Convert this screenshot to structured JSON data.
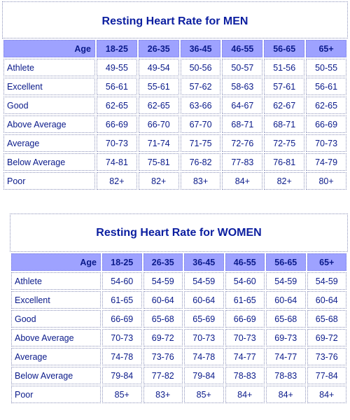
{
  "men": {
    "title": "Resting Heart Rate for MEN",
    "age_label": "Age",
    "age_groups": [
      "18-25",
      "26-35",
      "36-45",
      "46-55",
      "56-65",
      "65+"
    ],
    "rows": [
      {
        "label": "Athlete",
        "values": [
          "49-55",
          "49-54",
          "50-56",
          "50-57",
          "51-56",
          "50-55"
        ]
      },
      {
        "label": "Excellent",
        "values": [
          "56-61",
          "55-61",
          "57-62",
          "58-63",
          "57-61",
          "56-61"
        ]
      },
      {
        "label": "Good",
        "values": [
          "62-65",
          "62-65",
          "63-66",
          "64-67",
          "62-67",
          "62-65"
        ]
      },
      {
        "label": "Above Average",
        "values": [
          "66-69",
          "66-70",
          "67-70",
          "68-71",
          "68-71",
          "66-69"
        ]
      },
      {
        "label": "Average",
        "values": [
          "70-73",
          "71-74",
          "71-75",
          "72-76",
          "72-75",
          "70-73"
        ]
      },
      {
        "label": "Below Average",
        "values": [
          "74-81",
          "75-81",
          "76-82",
          "77-83",
          "76-81",
          "74-79"
        ]
      },
      {
        "label": "Poor",
        "values": [
          "82+",
          "82+",
          "83+",
          "84+",
          "82+",
          "80+"
        ]
      }
    ]
  },
  "women": {
    "title": "Resting Heart Rate for WOMEN",
    "age_label": "Age",
    "age_groups": [
      "18-25",
      "26-35",
      "36-45",
      "46-55",
      "56-65",
      "65+"
    ],
    "rows": [
      {
        "label": "Athlete",
        "values": [
          "54-60",
          "54-59",
          "54-59",
          "54-60",
          "54-59",
          "54-59"
        ]
      },
      {
        "label": "Excellent",
        "values": [
          "61-65",
          "60-64",
          "60-64",
          "61-65",
          "60-64",
          "60-64"
        ]
      },
      {
        "label": "Good",
        "values": [
          "66-69",
          "65-68",
          "65-69",
          "66-69",
          "65-68",
          "65-68"
        ]
      },
      {
        "label": "Above Average",
        "values": [
          "70-73",
          "69-72",
          "70-73",
          "70-73",
          "69-73",
          "69-72"
        ]
      },
      {
        "label": "Average",
        "values": [
          "74-78",
          "73-76",
          "74-78",
          "74-77",
          "74-77",
          "73-76"
        ]
      },
      {
        "label": "Below Average",
        "values": [
          "79-84",
          "77-82",
          "79-84",
          "78-83",
          "78-83",
          "77-84"
        ]
      },
      {
        "label": "Poor",
        "values": [
          "85+",
          "83+",
          "85+",
          "84+",
          "84+",
          "84+"
        ]
      }
    ]
  }
}
